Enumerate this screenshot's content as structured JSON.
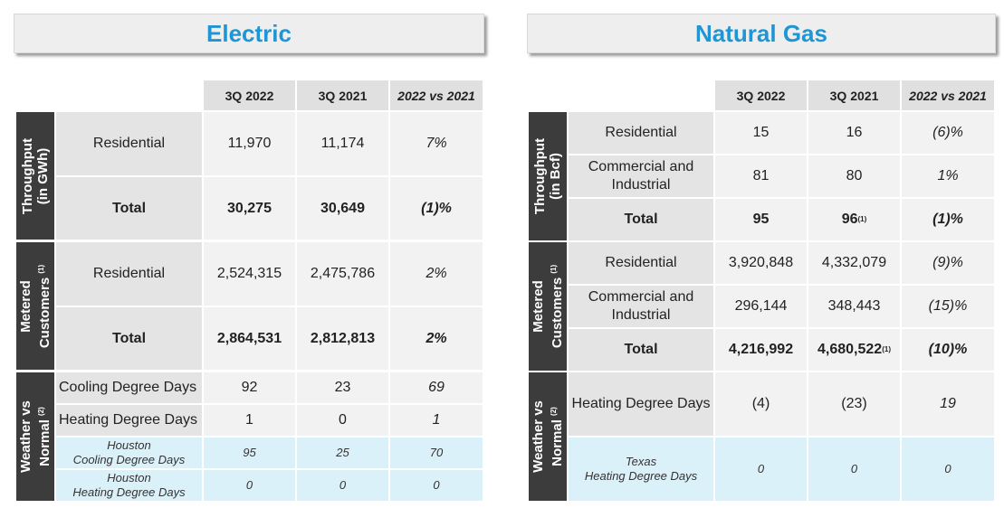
{
  "electric": {
    "title": "Electric",
    "headers": [
      "3Q 2022",
      "3Q 2021",
      "2022 vs 2021"
    ],
    "throughput": {
      "label_line1": "Throughput",
      "label_line2": "(in GWh)",
      "rows": [
        {
          "label": "Residential",
          "v2022": "11,970",
          "v2021": "11,174",
          "change": "7%"
        },
        {
          "label": "Total",
          "v2022": "30,275",
          "v2021": "30,649",
          "change": "(1)%"
        }
      ]
    },
    "customers": {
      "label_line1": "Metered",
      "label_line2": "Customers",
      "footnote": "(1)",
      "rows": [
        {
          "label": "Residential",
          "v2022": "2,524,315",
          "v2021": "2,475,786",
          "change": "2%"
        },
        {
          "label": "Total",
          "v2022": "2,864,531",
          "v2021": "2,812,813",
          "change": "2%"
        }
      ]
    },
    "weather": {
      "label_line1": "Weather vs",
      "label_line2": "Normal",
      "footnote": "(2)",
      "rows": [
        {
          "label": "Cooling Degree Days",
          "v2022": "92",
          "v2021": "23",
          "change": "69"
        },
        {
          "label": "Heating Degree Days",
          "v2022": "1",
          "v2021": "0",
          "change": "1"
        },
        {
          "label_line1": "Houston",
          "label_line2": "Cooling Degree Days",
          "v2022": "95",
          "v2021": "25",
          "change": "70"
        },
        {
          "label_line1": "Houston",
          "label_line2": "Heating Degree Days",
          "v2022": "0",
          "v2021": "0",
          "change": "0"
        }
      ]
    }
  },
  "gas": {
    "title": "Natural Gas",
    "headers": [
      "3Q 2022",
      "3Q 2021",
      "2022 vs 2021"
    ],
    "throughput": {
      "label_line1": "Throughput",
      "label_line2": "(in Bcf)",
      "rows": [
        {
          "label": "Residential",
          "v2022": "15",
          "v2021": "16",
          "change": "(6)%"
        },
        {
          "label_line1": "Commercial and",
          "label_line2": "Industrial",
          "v2022": "81",
          "v2021": "80",
          "change": "1%"
        },
        {
          "label": "Total",
          "v2022": "95",
          "v2021": "96",
          "v2021_note": "(1)",
          "change": "(1)%"
        }
      ]
    },
    "customers": {
      "label_line1": "Metered",
      "label_line2": "Customers",
      "footnote": "(1)",
      "rows": [
        {
          "label": "Residential",
          "v2022": "3,920,848",
          "v2021": "4,332,079",
          "change": "(9)%"
        },
        {
          "label_line1": "Commercial and",
          "label_line2": "Industrial",
          "v2022": "296,144",
          "v2021": "348,443",
          "change": "(15)%"
        },
        {
          "label": "Total",
          "v2022": "4,216,992",
          "v2021": "4,680,522",
          "v2021_note": "(1)",
          "change": "(10)%"
        }
      ]
    },
    "weather": {
      "label_line1": "Weather vs",
      "label_line2": "Normal",
      "footnote": "(2)",
      "rows": [
        {
          "label": "Heating Degree Days",
          "v2022": "(4)",
          "v2021": "(23)",
          "change": "19"
        },
        {
          "label_line1": "Texas",
          "label_line2": "Heating Degree Days",
          "v2022": "0",
          "v2021": "0",
          "change": "0"
        }
      ]
    }
  },
  "colors": {
    "title_blue": "#1f95d3",
    "side_label_bg": "#3c3c3c",
    "highlight_row_bg": "#dbf1fa"
  }
}
